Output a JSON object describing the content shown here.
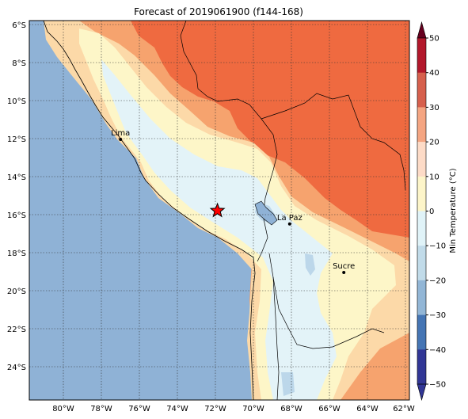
{
  "title": "Forecast of 2019061900 (f144-168)",
  "lat_ticks": [
    "6°S",
    "8°S",
    "10°S",
    "12°S",
    "14°S",
    "16°S",
    "18°S",
    "20°S",
    "22°S",
    "24°S"
  ],
  "lon_ticks": [
    "80°W",
    "78°W",
    "76°W",
    "74°W",
    "72°W",
    "70°W",
    "68°W",
    "66°W",
    "64°W",
    "62°W"
  ],
  "cities": [
    {
      "name": "Lima",
      "lon": -77.0,
      "lat": -12.05
    },
    {
      "name": "La Paz",
      "lon": -68.1,
      "lat": -16.5
    },
    {
      "name": "Sucre",
      "lon": -65.25,
      "lat": -19.05
    }
  ],
  "marker": {
    "type": "star",
    "lon": -71.9,
    "lat": -15.8,
    "color": "#ff0000"
  },
  "colorbar": {
    "label": "Min Temperature (°C)",
    "ticks": [
      "50",
      "40",
      "30",
      "20",
      "10",
      "0",
      "−10",
      "−20",
      "−30",
      "−40",
      "−50"
    ],
    "colors": [
      "#67001f",
      "#b2182b",
      "#d6604d",
      "#f4a582",
      "#fddbc7",
      "#fdf5c9",
      "#e0f3f8",
      "#c1dbe9",
      "#92b6d6",
      "#4575b4",
      "#313695"
    ],
    "extend": "both"
  },
  "colors": {
    "ocean": "#8fb2d6",
    "band_0_10": "#fdf6c8",
    "band_10_20": "#fcd9a8",
    "band_20_30": "#f6a36e",
    "band_30_40": "#ef6a40",
    "band_neg10_0": "#e3f3f8",
    "band_neg20_neg10": "#bcd7ea"
  }
}
